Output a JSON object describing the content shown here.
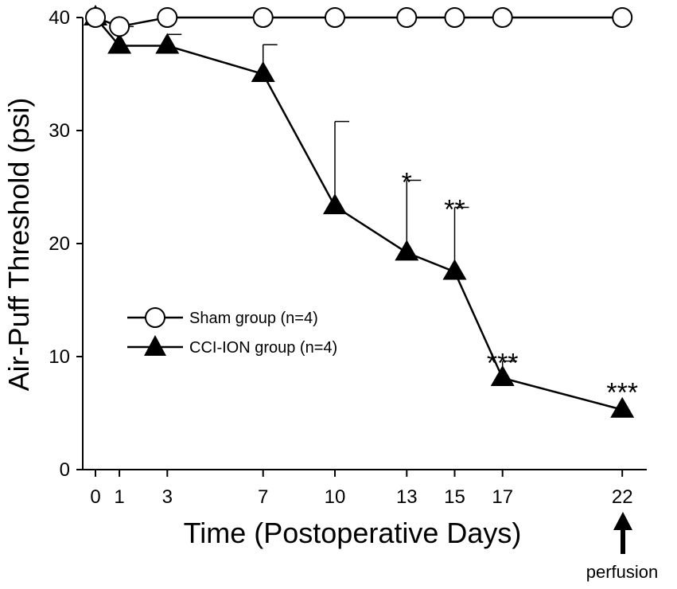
{
  "chart_data": {
    "type": "line",
    "title": "",
    "xlabel": "Time (Postoperative Days)",
    "ylabel": "Air-Puff Threshold (psi)",
    "x": [
      0,
      1,
      3,
      7,
      10,
      13,
      15,
      17,
      22
    ],
    "x_ticks": [
      "0",
      "1",
      "3",
      "7",
      "10",
      "13",
      "15",
      "17",
      "22"
    ],
    "y_ticks": [
      "0",
      "10",
      "20",
      "30",
      "40"
    ],
    "xlim": [
      -0.5,
      23.5
    ],
    "ylim": [
      0,
      40
    ],
    "grid": false,
    "legend_position": "center-left",
    "series": [
      {
        "name": "Sham group (n=4)",
        "marker": "open-circle",
        "x": [
          0,
          1,
          3,
          7,
          10,
          13,
          15,
          17,
          22
        ],
        "values": [
          40,
          39.2,
          40,
          40,
          40,
          40,
          40,
          40,
          40
        ],
        "error_upper": [
          null,
          null,
          null,
          null,
          null,
          null,
          null,
          null,
          null
        ]
      },
      {
        "name": "CCI-ION group (n=4)",
        "marker": "filled-triangle",
        "x": [
          0,
          1,
          3,
          7,
          10,
          13,
          15,
          17,
          22
        ],
        "values": [
          40,
          37.5,
          37.5,
          35,
          23.3,
          19.2,
          17.5,
          8.1,
          5.3
        ],
        "error_upper": [
          null,
          39.2,
          38.5,
          37.6,
          30.8,
          25.6,
          23.2,
          9.6,
          null
        ]
      }
    ],
    "significance": [
      {
        "x": 13,
        "label": "*"
      },
      {
        "x": 15,
        "label": "**"
      },
      {
        "x": 17,
        "label": "***"
      },
      {
        "x": 22,
        "label": "***"
      }
    ],
    "annotations": [
      {
        "x": 22,
        "label": "perfusion",
        "symbol": "arrow-up"
      }
    ]
  },
  "colors": {
    "ink": "#000000",
    "background": "#ffffff"
  }
}
